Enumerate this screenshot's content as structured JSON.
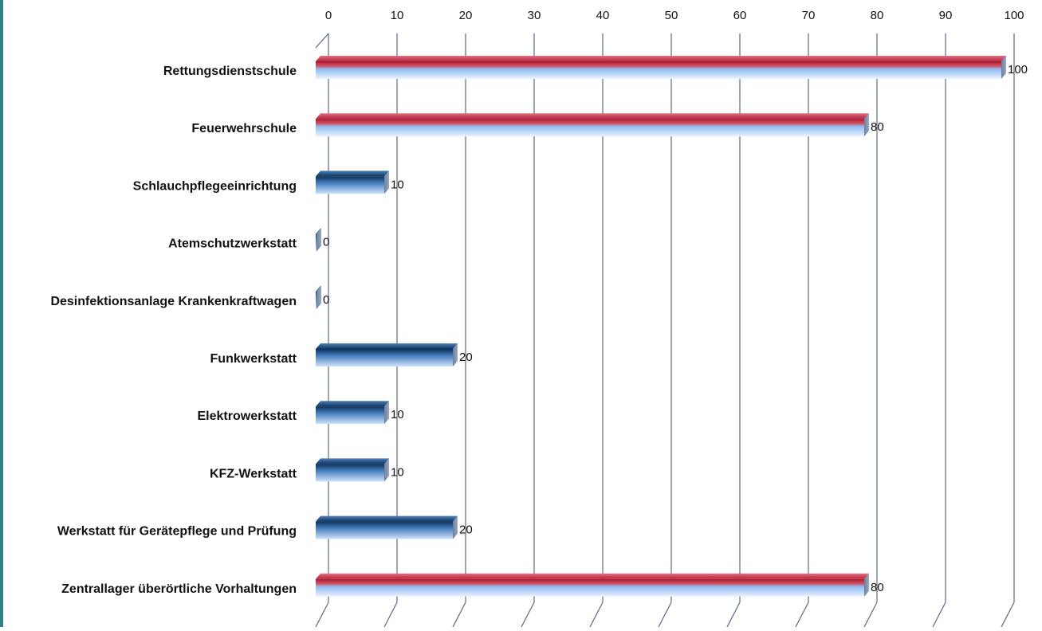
{
  "chart_data": {
    "type": "bar",
    "orientation": "horizontal",
    "style": "3d",
    "title": "",
    "xlabel": "",
    "ylabel": "",
    "xlim": [
      0,
      100
    ],
    "x_ticks": [
      0,
      10,
      20,
      30,
      40,
      50,
      60,
      70,
      80,
      90,
      100
    ],
    "x_axis_position": "top",
    "grid": "vertical",
    "categories": [
      "Rettungsdienstschule",
      "Feuerwehrschule",
      "Schlauchpflegeeinrichtung",
      "Atemschutzwerkstatt",
      "Desinfektionsanlage Krankenkraftwagen",
      "Funkwerkstatt",
      "Elektrowerkstatt",
      "KFZ-Werkstatt",
      "Werkstatt für Gerätepflege und Prüfung",
      "Zentrallager überörtliche Vorhaltungen"
    ],
    "values": [
      100,
      80,
      10,
      0,
      0,
      20,
      10,
      10,
      20,
      80
    ],
    "data_labels": [
      "100",
      "80",
      "10",
      "0",
      "0",
      "20",
      "10",
      "10",
      "20",
      "80"
    ],
    "colors": {
      "high_top": "#c0283c",
      "high_bottom": "#7fb0ec",
      "low_top": "#123a66",
      "low_bottom": "#a8ccf2",
      "grid": "#5a6a88",
      "text": "#111111"
    }
  }
}
